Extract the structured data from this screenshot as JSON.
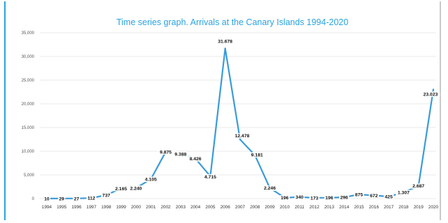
{
  "chart_data": {
    "type": "line",
    "title": "Time series graph. Arrivals at the Canary Islands 1994-2020",
    "xlabel": "",
    "ylabel": "",
    "ylim": [
      0,
      35000
    ],
    "grid": true,
    "y_ticks": [
      "0",
      "5,000",
      "10,000",
      "15,000",
      "20,000",
      "25,000",
      "30,000",
      "35,000"
    ],
    "categories": [
      "1994",
      "1995",
      "1996",
      "1997",
      "1998",
      "1999",
      "2000",
      "2001",
      "2002",
      "2003",
      "2004",
      "2005",
      "2006",
      "2007",
      "2008",
      "2009",
      "2010",
      "2011",
      "2012",
      "2013",
      "2014",
      "2015",
      "2016",
      "2017",
      "2018",
      "2019",
      "2020"
    ],
    "values": [
      10,
      29,
      27,
      112,
      737,
      2165,
      2240,
      4105,
      9875,
      9388,
      8426,
      4715,
      31678,
      12478,
      9181,
      2246,
      196,
      340,
      173,
      196,
      296,
      875,
      672,
      425,
      1307,
      2687,
      23023
    ],
    "data_labels": [
      "10",
      "29",
      "27",
      "112",
      "737",
      "2.165",
      "2.240",
      "4.105",
      "9.875",
      "9.388",
      "8.426",
      "4.715",
      "31.678",
      "12.478",
      "9.181",
      "2.246",
      "196",
      "340",
      "173",
      "196",
      "296",
      "875",
      "672",
      "425",
      "1.307",
      "2.687",
      "23.023"
    ],
    "colors": {
      "line": "#3a9bd9",
      "title": "#29a3e0"
    }
  }
}
